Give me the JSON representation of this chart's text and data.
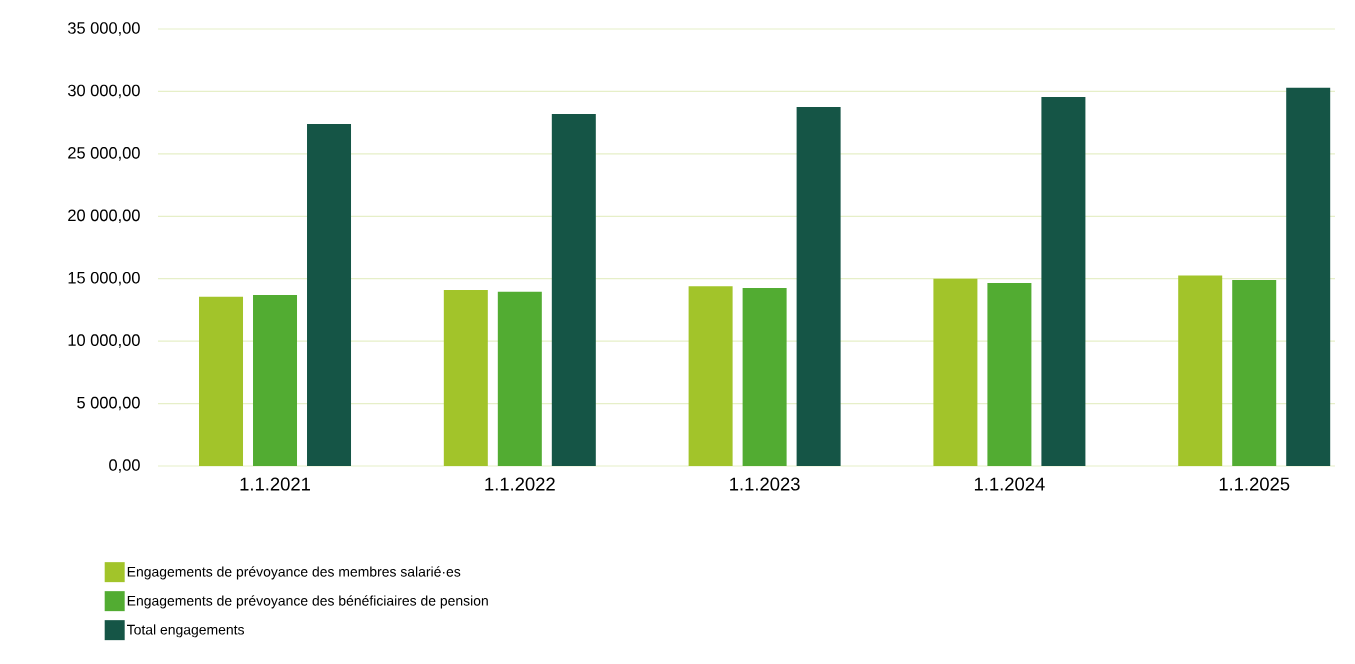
{
  "chart_data": {
    "type": "bar",
    "categories": [
      "1.1.2021",
      "1.1.2022",
      "1.1.2023",
      "1.1.2024",
      "1.1.2025"
    ],
    "series": [
      {
        "name": "Engagements de prévoyance des membres salarié·es",
        "color": "#a2c42a",
        "values": [
          13550,
          14100,
          14400,
          15000,
          15250
        ]
      },
      {
        "name": "Engagements de prévoyance des bénéficiaires de pension",
        "color": "#52ac32",
        "values": [
          13700,
          13950,
          14250,
          14650,
          14900
        ]
      },
      {
        "name": "Total engagements",
        "color": "#155546",
        "values": [
          27400,
          28200,
          28750,
          29550,
          30300
        ]
      }
    ],
    "ylim": [
      0,
      35000
    ],
    "yticks": [
      {
        "value": 0,
        "label": "0,00"
      },
      {
        "value": 5000,
        "label": "5 000,00"
      },
      {
        "value": 10000,
        "label": "10 000,00"
      },
      {
        "value": 15000,
        "label": "15 000,00"
      },
      {
        "value": 20000,
        "label": "20 000,00"
      },
      {
        "value": 25000,
        "label": "25 000,00"
      },
      {
        "value": 30000,
        "label": "30 000,00"
      },
      {
        "value": 35000,
        "label": "35 000,00"
      }
    ],
    "grid": "y",
    "legend": "bottom left"
  }
}
